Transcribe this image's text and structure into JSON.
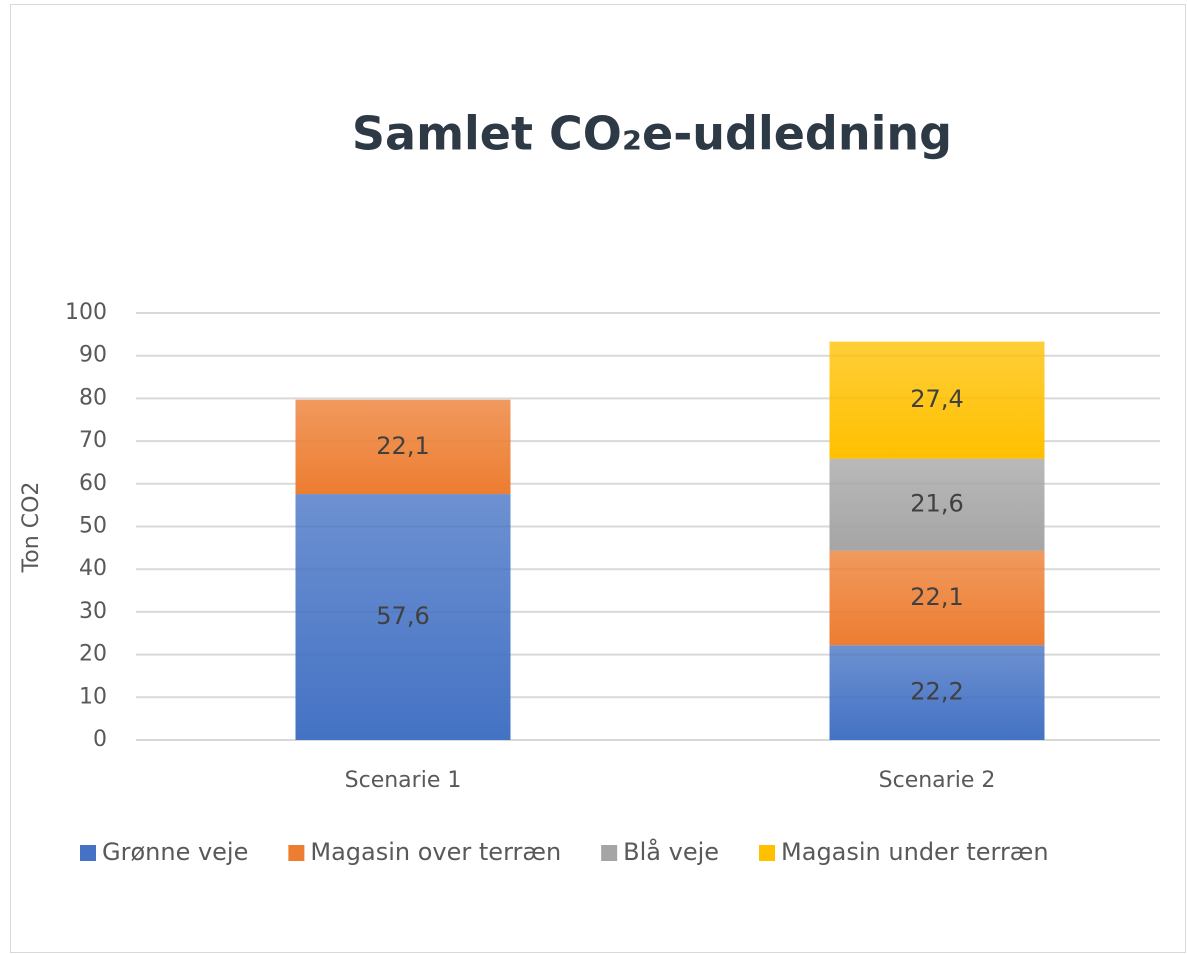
{
  "chart_data": {
    "type": "stacked_bar",
    "title": "Samlet CO₂e-udledning",
    "y_label": "Ton CO2",
    "categories": [
      "Scenarie 1",
      "Scenarie 2"
    ],
    "series": [
      {
        "name": "Grønne veje",
        "color": "#4472c4",
        "values": [
          57.6,
          22.2
        ],
        "value_labels": [
          "57,6",
          "22,2"
        ]
      },
      {
        "name": "Magasin over terræn",
        "color": "#ed7d31",
        "values": [
          22.1,
          22.1
        ],
        "value_labels": [
          "22,1",
          "22,1"
        ]
      },
      {
        "name": "Blå veje",
        "color": "#a5a5a5",
        "values": [
          null,
          21.6
        ],
        "value_labels": [
          null,
          "21,6"
        ]
      },
      {
        "name": "Magasin under terræn",
        "color": "#ffc000",
        "values": [
          null,
          27.4
        ],
        "value_labels": [
          null,
          "27,4"
        ]
      }
    ],
    "ylim": [
      0,
      100
    ],
    "yticks": [
      0,
      10,
      20,
      30,
      40,
      50,
      60,
      70,
      80,
      90,
      100
    ],
    "grid": true,
    "legend": "bottom"
  }
}
